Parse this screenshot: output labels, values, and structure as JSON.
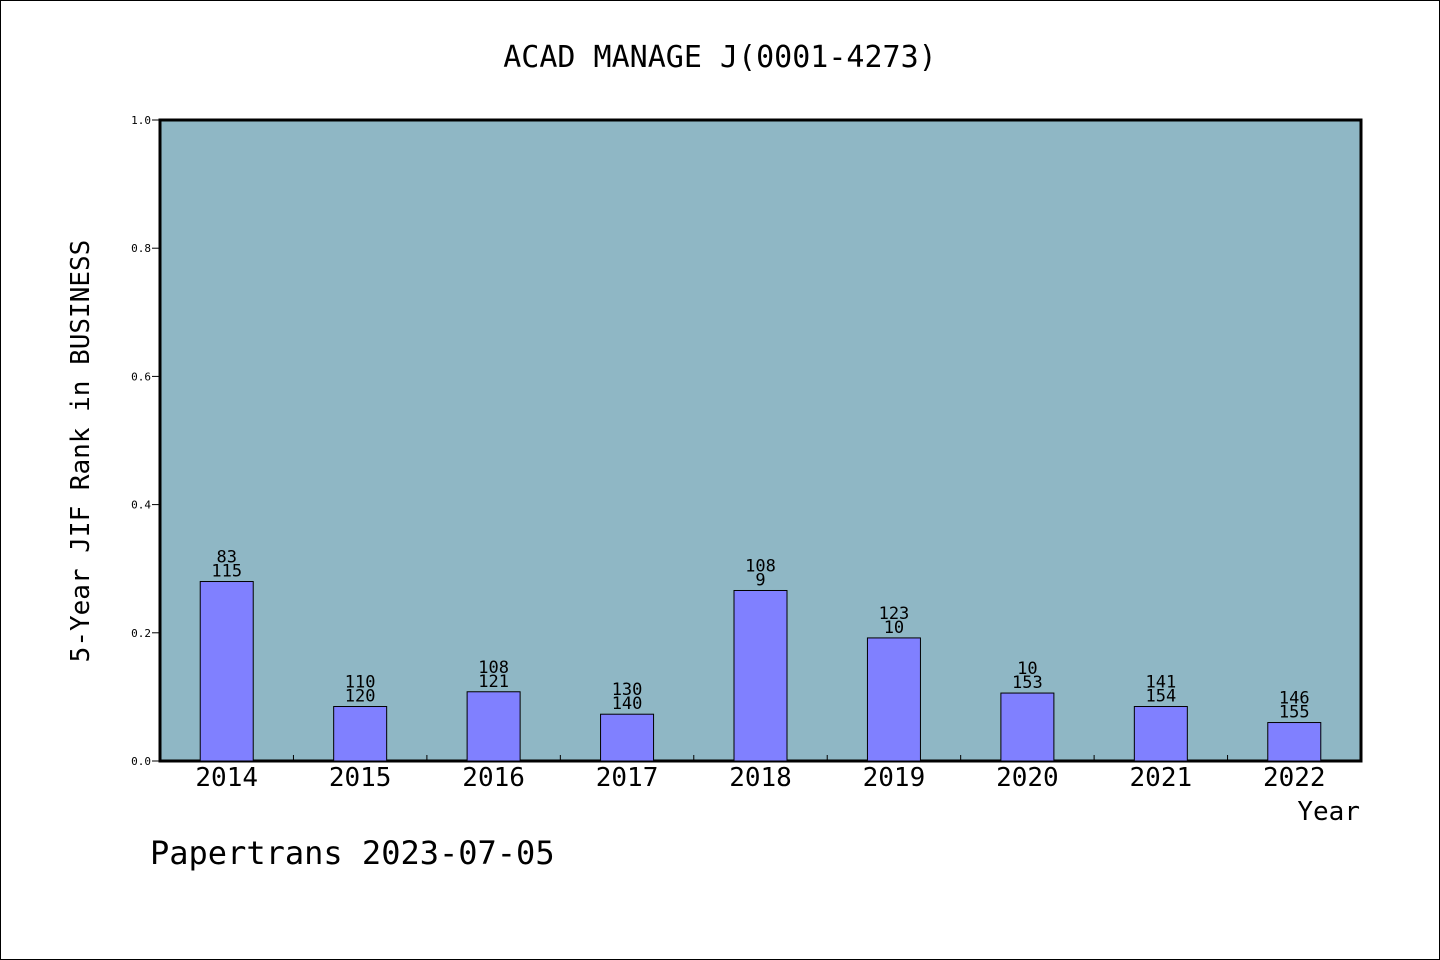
{
  "chart_data": {
    "type": "bar",
    "title": "ACAD MANAGE J(0001-4273)",
    "xlabel": "Year",
    "ylabel": "5-Year JIF Rank in BUSINESS",
    "ylim": [
      0,
      1.0
    ],
    "yticks": [
      "0.0",
      "0.2",
      "0.4",
      "0.6",
      "0.8",
      "1.0"
    ],
    "grid": false,
    "categories": [
      "2014",
      "2015",
      "2016",
      "2017",
      "2018",
      "2019",
      "2020",
      "2021",
      "2022"
    ],
    "values": [
      0.28,
      0.085,
      0.108,
      0.073,
      0.266,
      0.192,
      0.106,
      0.085,
      0.06
    ],
    "bar_labels_top": [
      "83",
      "110",
      "108",
      "130",
      "108",
      "123",
      "10",
      "141",
      "146"
    ],
    "bar_labels_bottom": [
      "115",
      "120",
      "121",
      "140",
      "9",
      "10",
      "153",
      "154",
      "155"
    ],
    "colors": {
      "plot_background": "#8fb7c5",
      "bar_fill": "#8080ff",
      "bar_stroke": "#000000"
    }
  },
  "footer": {
    "credit": "Papertrans 2023-07-05"
  }
}
